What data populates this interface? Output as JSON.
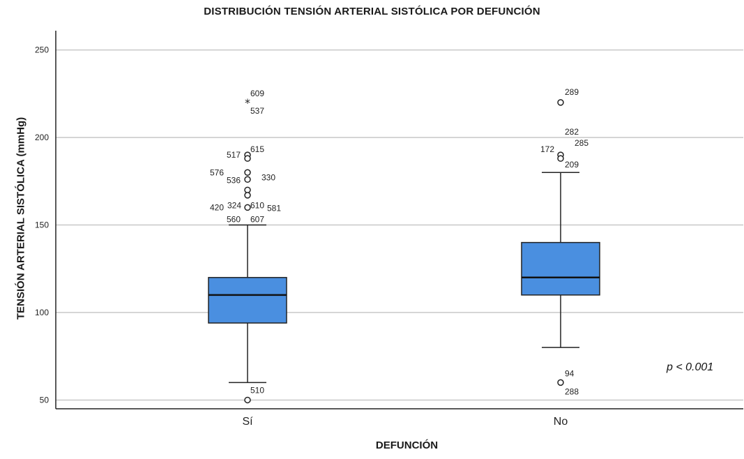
{
  "chart_data": {
    "type": "boxplot",
    "title": "DISTRIBUCIÓN TENSIÓN ARTERIAL SISTÓLICA POR DEFUNCIÓN",
    "xlabel": "DEFUNCIÓN",
    "ylabel": "TENSIÓN ARTERIAL SISTÓLICA (mmHg)",
    "ylim": [
      45,
      261
    ],
    "yticks": [
      50,
      100,
      150,
      200,
      250
    ],
    "grid": true,
    "categories": [
      "Sí",
      "No"
    ],
    "boxes": [
      {
        "category": "Sí",
        "whisker_low": 60,
        "q1": 94,
        "median": 110,
        "q3": 120,
        "whisker_high": 150,
        "outliers": [
          {
            "value": 220,
            "marker": "star",
            "labels": [
              {
                "text": "609",
                "dx": 4,
                "dy": -9
              },
              {
                "text": "537",
                "dx": 4,
                "dy": 16
              }
            ]
          },
          {
            "value": 190,
            "marker": "circle",
            "labels": [
              {
                "text": "517",
                "dx": -30,
                "dy": 4
              },
              {
                "text": "615",
                "dx": 4,
                "dy": -4
              }
            ]
          },
          {
            "value": 188,
            "marker": "circle",
            "labels": []
          },
          {
            "value": 180,
            "marker": "circle",
            "labels": [
              {
                "text": "576",
                "dx": -54,
                "dy": 4
              }
            ]
          },
          {
            "value": 176,
            "marker": "circle",
            "labels": [
              {
                "text": "536",
                "dx": -30,
                "dy": 5
              },
              {
                "text": "330",
                "dx": 20,
                "dy": 1
              }
            ]
          },
          {
            "value": 170,
            "marker": "circle",
            "labels": []
          },
          {
            "value": 167,
            "marker": "circle",
            "labels": []
          },
          {
            "value": 160,
            "marker": "circle",
            "labels": [
              {
                "text": "420",
                "dx": -54,
                "dy": 4
              },
              {
                "text": "324",
                "dx": -29,
                "dy": 1
              },
              {
                "text": "610",
                "dx": 4,
                "dy": 1
              },
              {
                "text": "581",
                "dx": 28,
                "dy": 5
              }
            ]
          },
          {
            "value": 154,
            "marker": "none",
            "labels": [
              {
                "text": "560",
                "dx": -30,
                "dy": 6
              },
              {
                "text": "607",
                "dx": 4,
                "dy": 6
              }
            ]
          },
          {
            "value": 50,
            "marker": "circle",
            "labels": [
              {
                "text": "510",
                "dx": 4,
                "dy": -10
              }
            ]
          }
        ]
      },
      {
        "category": "No",
        "whisker_low": 80,
        "q1": 110,
        "median": 120,
        "q3": 140,
        "whisker_high": 180,
        "outliers": [
          {
            "value": 220,
            "marker": "circle",
            "labels": [
              {
                "text": "289",
                "dx": 6,
                "dy": -11
              }
            ]
          },
          {
            "value": 190,
            "marker": "circle",
            "labels": [
              {
                "text": "282",
                "dx": 6,
                "dy": -29
              },
              {
                "text": "172",
                "dx": -29,
                "dy": -4
              },
              {
                "text": "285",
                "dx": 20,
                "dy": -13
              }
            ]
          },
          {
            "value": 188,
            "marker": "circle",
            "labels": [
              {
                "text": "209",
                "dx": 6,
                "dy": 13
              }
            ]
          },
          {
            "value": 60,
            "marker": "circle",
            "labels": [
              {
                "text": "94",
                "dx": 6,
                "dy": -9
              },
              {
                "text": "288",
                "dx": 6,
                "dy": 17
              }
            ]
          }
        ]
      }
    ],
    "annotation": "p < 0.001",
    "colors": {
      "box_fill": "#4a8fe0",
      "box_stroke": "#222222",
      "grid": "#c8c8c8",
      "axis": "#222222"
    }
  }
}
